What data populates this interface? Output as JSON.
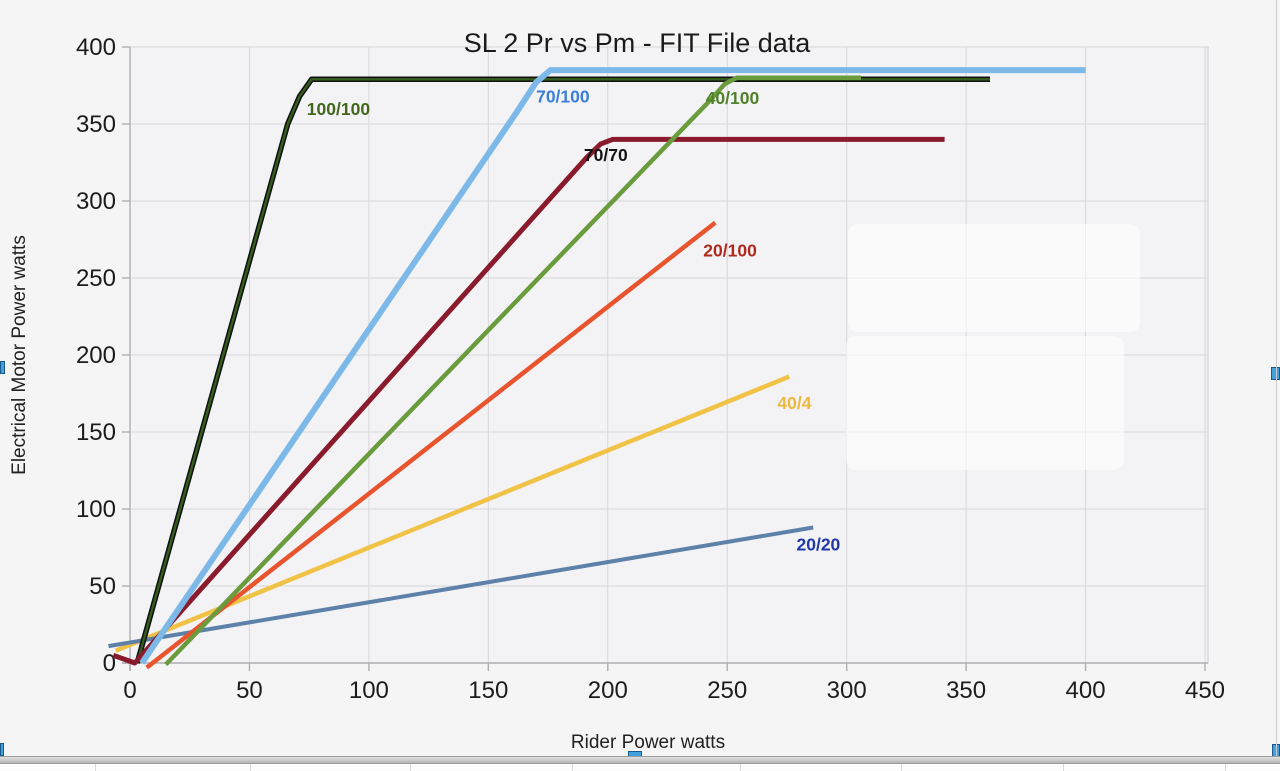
{
  "chart_data": {
    "type": "line",
    "title": "SL 2  Pr vs Pm - FIT File data",
    "xlabel": "Rider Power watts",
    "ylabel": "Electrical Motor Power watts",
    "xlim": [
      0,
      450
    ],
    "ylim": [
      0,
      400
    ],
    "xticks": [
      0,
      50,
      100,
      150,
      200,
      250,
      300,
      350,
      400,
      450
    ],
    "yticks": [
      0,
      50,
      100,
      150,
      200,
      250,
      300,
      350,
      400
    ],
    "grid": true,
    "legend": "inline-labels",
    "series": [
      {
        "name": "100/100",
        "line_color": "#111111",
        "core_color": "#355e1d",
        "label_color": "#44661d",
        "width": 5.5,
        "core_width": 2.4,
        "z": 3,
        "label_at": [
          74,
          356
        ],
        "points": [
          [
            3,
            0
          ],
          [
            66,
            350
          ],
          [
            71,
            368
          ],
          [
            76,
            379
          ],
          [
            360,
            379
          ]
        ]
      },
      {
        "name": "70/100",
        "line_color": "#7db9e8",
        "label_color": "#3b7ed8",
        "width": 6,
        "z": 6,
        "label_at": [
          170,
          364
        ],
        "points": [
          [
            5,
            0
          ],
          [
            162,
            358
          ],
          [
            170,
            377
          ],
          [
            176,
            385
          ],
          [
            400,
            385
          ]
        ]
      },
      {
        "name": "40/100",
        "line_color": "#6a9b3d",
        "label_color": "#50802a",
        "width": 4.5,
        "z": 5,
        "label_at": [
          241,
          363
        ],
        "points": [
          [
            15,
            -1
          ],
          [
            242,
            364
          ],
          [
            249,
            376
          ],
          [
            254,
            380
          ],
          [
            306,
            380
          ]
        ]
      },
      {
        "name": "70/70",
        "line_color": "#8a1b2d",
        "label_color": "#141414",
        "width": 5,
        "z": 4,
        "label_at": [
          190,
          326
        ],
        "points": [
          [
            -7,
            5
          ],
          [
            2,
            0
          ],
          [
            191,
            328
          ],
          [
            197,
            337
          ],
          [
            202,
            340
          ],
          [
            341,
            340
          ]
        ]
      },
      {
        "name": "20/100",
        "line_color": "#e8542e",
        "label_color": "#ae2a1e",
        "width": 4.5,
        "z": 2,
        "label_at": [
          240,
          264
        ],
        "points": [
          [
            7,
            -3
          ],
          [
            245,
            286
          ]
        ]
      },
      {
        "name": "40/4",
        "line_color": "#f0c246",
        "label_color": "#edb83e",
        "width": 4.5,
        "z": 0,
        "label_at": [
          271,
          165
        ],
        "points": [
          [
            -6,
            8
          ],
          [
            276,
            186
          ]
        ]
      },
      {
        "name": "20/20",
        "line_color": "#5d81a8",
        "label_color": "#2038a8",
        "width": 4,
        "z": 1,
        "label_at": [
          279,
          73
        ],
        "points": [
          [
            -9,
            11
          ],
          [
            286,
            88
          ]
        ]
      }
    ]
  }
}
